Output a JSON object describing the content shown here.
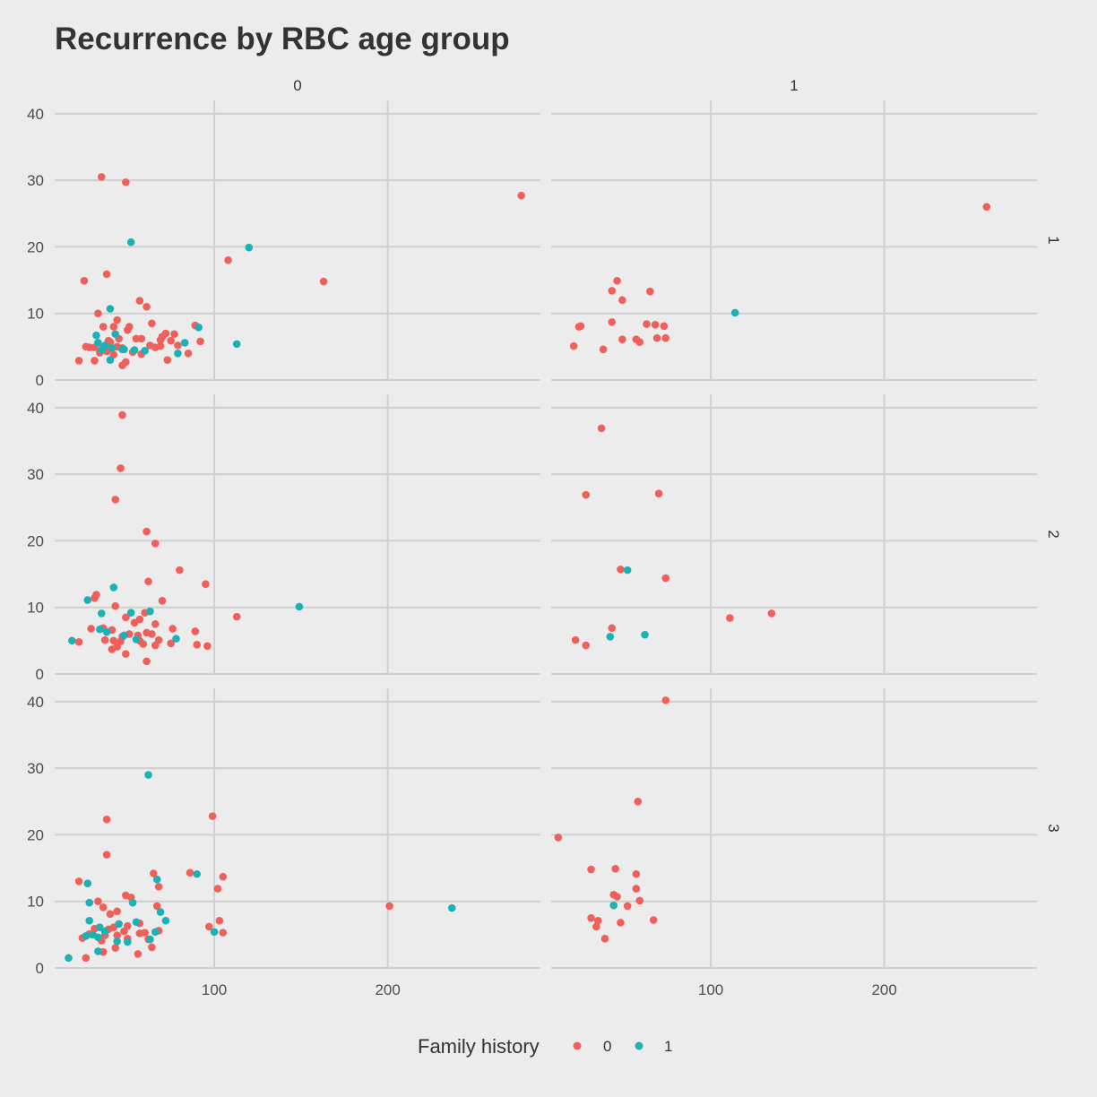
{
  "chart_data": {
    "type": "scatter",
    "title": "Recurrence by RBC age group",
    "xlabel": "",
    "ylabel": "",
    "xlim": [
      8,
      288
    ],
    "ylim": [
      0,
      42
    ],
    "x_ticks": [
      100,
      200
    ],
    "y_ticks": [
      0,
      10,
      20,
      30,
      40
    ],
    "grid": true,
    "col_facets": [
      "0",
      "1"
    ],
    "row_facets": [
      "1",
      "2",
      "3"
    ],
    "legend": {
      "title": "Family history",
      "position": "bottom",
      "entries": [
        {
          "label": "0",
          "color": "#f0605a"
        },
        {
          "label": "1",
          "color": "#1cb1b6"
        }
      ]
    },
    "panels": [
      {
        "row": "1",
        "col": "0",
        "series": [
          {
            "group": "0",
            "points": [
              [
                35,
                30.5
              ],
              [
                49,
                29.7
              ],
              [
                38,
                15.9
              ],
              [
                25,
                14.9
              ],
              [
                57,
                11.9
              ],
              [
                61,
                11.0
              ],
              [
                33,
                10.0
              ],
              [
                44,
                9.0
              ],
              [
                64,
                8.5
              ],
              [
                36,
                8.0
              ],
              [
                51,
                8.0
              ],
              [
                50,
                7.5
              ],
              [
                42,
                8.0
              ],
              [
                72,
                7.0
              ],
              [
                77,
                6.9
              ],
              [
                70,
                6.5
              ],
              [
                69,
                6.0
              ],
              [
                75,
                5.9
              ],
              [
                55,
                6.2
              ],
              [
                58,
                6.2
              ],
              [
                63,
                5.2
              ],
              [
                66,
                4.9
              ],
              [
                47,
                4.8
              ],
              [
                39,
                5.9
              ],
              [
                44,
                5.0
              ],
              [
                31,
                4.9
              ],
              [
                28,
                4.9
              ],
              [
                26,
                5.0
              ],
              [
                38,
                4.3
              ],
              [
                34,
                4.1
              ],
              [
                42,
                3.8
              ],
              [
                53,
                4.2
              ],
              [
                58,
                3.9
              ],
              [
                69,
                5.1
              ],
              [
                79,
                5.2
              ],
              [
                85,
                4.0
              ],
              [
                92,
                5.8
              ],
              [
                89,
                8.2
              ],
              [
                73,
                3.0
              ],
              [
                31,
                2.9
              ],
              [
                49,
                2.7
              ],
              [
                47,
                2.2
              ],
              [
                22,
                2.9
              ],
              [
                40,
                5.7
              ],
              [
                45,
                6.2
              ],
              [
                36,
                4.9
              ],
              [
                108,
                18.0
              ],
              [
                163,
                14.8
              ],
              [
                277,
                27.7
              ]
            ]
          },
          {
            "group": "1",
            "points": [
              [
                52,
                20.7
              ],
              [
                40,
                10.7
              ],
              [
                43,
                6.9
              ],
              [
                32,
                6.7
              ],
              [
                33,
                5.6
              ],
              [
                37,
                5.2
              ],
              [
                41,
                4.8
              ],
              [
                48,
                4.6
              ],
              [
                54,
                4.5
              ],
              [
                60,
                4.4
              ],
              [
                79,
                4.0
              ],
              [
                83,
                5.6
              ],
              [
                91,
                7.9
              ],
              [
                47,
                4.6
              ],
              [
                113,
                5.4
              ],
              [
                120,
                19.9
              ],
              [
                35,
                4.5
              ],
              [
                40,
                3.0
              ]
            ]
          }
        ]
      },
      {
        "row": "1",
        "col": "1",
        "series": [
          {
            "group": "0",
            "points": [
              [
                46,
                14.9
              ],
              [
                43,
                13.4
              ],
              [
                65,
                13.3
              ],
              [
                49,
                12.0
              ],
              [
                43,
                8.7
              ],
              [
                24,
                8.0
              ],
              [
                25,
                8.1
              ],
              [
                63,
                8.4
              ],
              [
                68,
                8.3
              ],
              [
                73,
                8.1
              ],
              [
                74,
                6.3
              ],
              [
                49,
                6.1
              ],
              [
                57,
                6.1
              ],
              [
                59,
                5.7
              ],
              [
                69,
                6.3
              ],
              [
                38,
                4.6
              ],
              [
                21,
                5.1
              ],
              [
                259,
                26.0
              ]
            ]
          },
          {
            "group": "1",
            "points": [
              [
                114,
                10.1
              ]
            ]
          }
        ]
      },
      {
        "row": "2",
        "col": "0",
        "series": [
          {
            "group": "0",
            "points": [
              [
                47,
                38.9
              ],
              [
                46,
                30.9
              ],
              [
                43,
                26.2
              ],
              [
                61,
                21.4
              ],
              [
                66,
                19.6
              ],
              [
                80,
                15.6
              ],
              [
                62,
                13.9
              ],
              [
                95,
                13.5
              ],
              [
                32,
                11.9
              ],
              [
                31,
                11.4
              ],
              [
                70,
                11.0
              ],
              [
                43,
                10.2
              ],
              [
                60,
                9.2
              ],
              [
                49,
                8.5
              ],
              [
                57,
                8.2
              ],
              [
                54,
                7.7
              ],
              [
                66,
                7.5
              ],
              [
                29,
                6.8
              ],
              [
                36,
                6.9
              ],
              [
                41,
                6.6
              ],
              [
                61,
                6.2
              ],
              [
                64,
                6.0
              ],
              [
                56,
                5.8
              ],
              [
                51,
                6.0
              ],
              [
                47,
                5.6
              ],
              [
                42,
                5.0
              ],
              [
                37,
                5.1
              ],
              [
                46,
                4.9
              ],
              [
                59,
                4.5
              ],
              [
                66,
                4.3
              ],
              [
                41,
                3.7
              ],
              [
                49,
                3.0
              ],
              [
                61,
                1.9
              ],
              [
                22,
                4.8
              ],
              [
                76,
                6.8
              ],
              [
                75,
                4.6
              ],
              [
                89,
                6.4
              ],
              [
                90,
                4.4
              ],
              [
                96,
                4.2
              ],
              [
                113,
                8.6
              ],
              [
                68,
                5.1
              ],
              [
                57,
                5.0
              ],
              [
                44,
                4.1
              ]
            ]
          },
          {
            "group": "1",
            "points": [
              [
                42,
                13.0
              ],
              [
                27,
                11.1
              ],
              [
                35,
                9.1
              ],
              [
                52,
                9.2
              ],
              [
                63,
                9.4
              ],
              [
                34,
                6.7
              ],
              [
                38,
                6.3
              ],
              [
                48,
                5.8
              ],
              [
                18,
                5.0
              ],
              [
                78,
                5.3
              ],
              [
                55,
                5.2
              ],
              [
                149,
                10.1
              ]
            ]
          }
        ]
      },
      {
        "row": "2",
        "col": "1",
        "series": [
          {
            "group": "0",
            "points": [
              [
                37,
                36.9
              ],
              [
                28,
                26.9
              ],
              [
                70,
                27.1
              ],
              [
                48,
                15.7
              ],
              [
                74,
                14.4
              ],
              [
                43,
                6.9
              ],
              [
                22,
                5.1
              ],
              [
                28,
                4.3
              ],
              [
                111,
                8.4
              ],
              [
                135,
                9.1
              ]
            ]
          },
          {
            "group": "1",
            "points": [
              [
                52,
                15.6
              ],
              [
                42,
                5.6
              ],
              [
                62,
                5.9
              ]
            ]
          }
        ]
      },
      {
        "row": "3",
        "col": "0",
        "series": [
          {
            "group": "0",
            "points": [
              [
                38,
                22.3
              ],
              [
                38,
                17.0
              ],
              [
                65,
                14.2
              ],
              [
                86,
                14.3
              ],
              [
                99,
                22.8
              ],
              [
                105,
                13.7
              ],
              [
                102,
                11.9
              ],
              [
                22,
                13.0
              ],
              [
                68,
                12.2
              ],
              [
                49,
                10.9
              ],
              [
                52,
                10.6
              ],
              [
                33,
                10.0
              ],
              [
                36,
                9.1
              ],
              [
                67,
                9.3
              ],
              [
                44,
                8.5
              ],
              [
                40,
                8.1
              ],
              [
                57,
                6.7
              ],
              [
                50,
                6.3
              ],
              [
                42,
                6.1
              ],
              [
                39,
                5.8
              ],
              [
                48,
                5.5
              ],
              [
                31,
                5.9
              ],
              [
                28,
                5.1
              ],
              [
                24,
                4.5
              ],
              [
                44,
                4.9
              ],
              [
                50,
                4.4
              ],
              [
                35,
                4.1
              ],
              [
                37,
                4.9
              ],
              [
                60,
                5.3
              ],
              [
                68,
                5.6
              ],
              [
                57,
                5.2
              ],
              [
                64,
                3.1
              ],
              [
                43,
                3.0
              ],
              [
                36,
                2.4
              ],
              [
                26,
                1.5
              ],
              [
                56,
                2.1
              ],
              [
                97,
                6.2
              ],
              [
                103,
                7.1
              ],
              [
                105,
                5.3
              ],
              [
                62,
                4.3
              ],
              [
                201,
                9.3
              ]
            ]
          },
          {
            "group": "1",
            "points": [
              [
                62,
                29.0
              ],
              [
                27,
                12.7
              ],
              [
                67,
                13.3
              ],
              [
                90,
                14.1
              ],
              [
                28,
                9.8
              ],
              [
                53,
                9.8
              ],
              [
                69,
                8.4
              ],
              [
                72,
                7.1
              ],
              [
                28,
                7.1
              ],
              [
                45,
                6.6
              ],
              [
                34,
                6.1
              ],
              [
                55,
                6.9
              ],
              [
                37,
                5.5
              ],
              [
                30,
                5.0
              ],
              [
                26,
                4.8
              ],
              [
                33,
                4.6
              ],
              [
                50,
                3.9
              ],
              [
                44,
                4.0
              ],
              [
                66,
                5.4
              ],
              [
                63,
                4.3
              ],
              [
                16,
                1.5
              ],
              [
                33,
                2.5
              ],
              [
                100,
                5.4
              ],
              [
                237,
                9.0
              ]
            ]
          }
        ]
      },
      {
        "row": "3",
        "col": "1",
        "series": [
          {
            "group": "0",
            "points": [
              [
                74,
                40.2
              ],
              [
                58,
                25.0
              ],
              [
                12,
                19.6
              ],
              [
                31,
                14.8
              ],
              [
                45,
                14.9
              ],
              [
                57,
                14.1
              ],
              [
                57,
                11.9
              ],
              [
                44,
                11.0
              ],
              [
                59,
                10.1
              ],
              [
                46,
                10.7
              ],
              [
                52,
                9.3
              ],
              [
                31,
                7.5
              ],
              [
                35,
                7.1
              ],
              [
                34,
                6.2
              ],
              [
                48,
                6.8
              ],
              [
                67,
                7.2
              ],
              [
                39,
                4.4
              ]
            ]
          },
          {
            "group": "1",
            "points": [
              [
                44,
                9.4
              ]
            ]
          }
        ]
      }
    ]
  }
}
